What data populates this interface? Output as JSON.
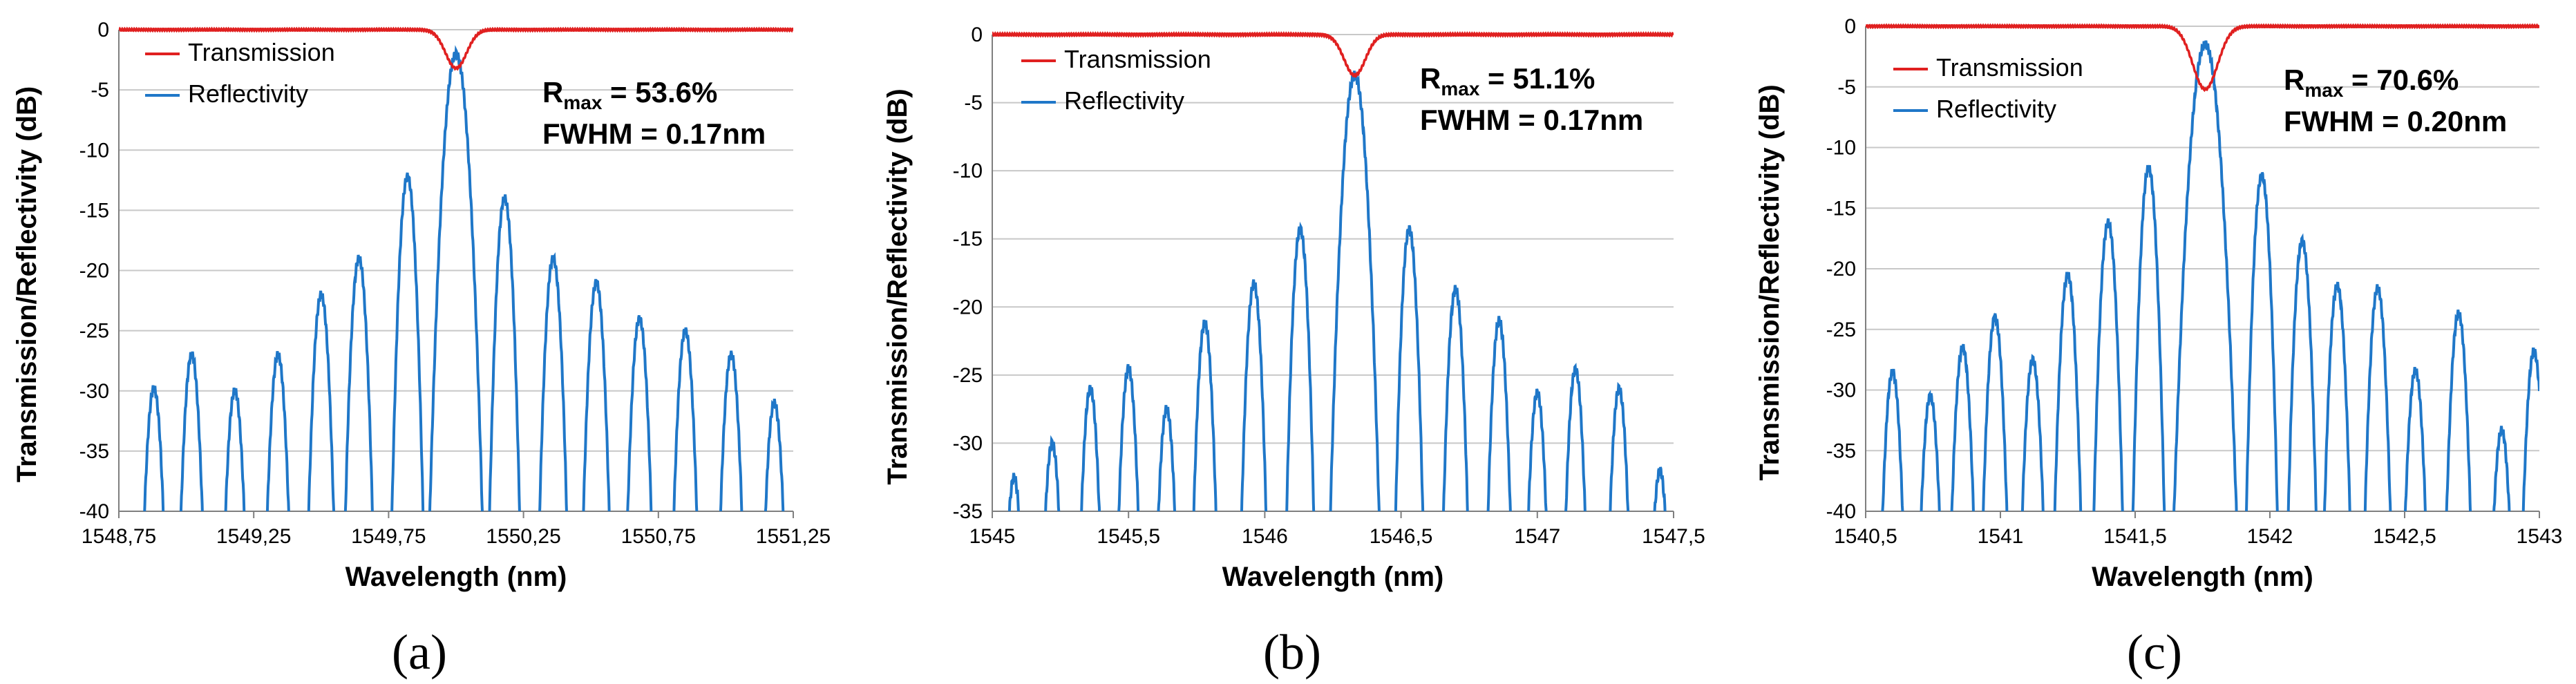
{
  "colors": {
    "transmission": "#e02020",
    "reflectivity": "#1f77c8",
    "grid": "#c8c8c8",
    "axis": "#7f7f7f"
  },
  "chart_data": [
    {
      "type": "line",
      "panel_label": "(a)",
      "xlabel": "Wavelength (nm)",
      "ylabel": "Transmission/Reflectivity (dB)",
      "xlim": [
        1548.75,
        1551.25
      ],
      "ylim": [
        -40,
        0
      ],
      "xticks": [
        1548.75,
        1549.25,
        1549.75,
        1550.25,
        1550.75,
        1551.25
      ],
      "xtick_labels": [
        "1548,75",
        "1549,25",
        "1549,75",
        "1550,25",
        "1550,75",
        "1551,25"
      ],
      "yticks": [
        0,
        -5,
        -10,
        -15,
        -20,
        -25,
        -30,
        -35,
        -40
      ],
      "ytick_labels": [
        "0",
        "-5",
        "-10",
        "-15",
        "-20",
        "-25",
        "-30",
        "-35",
        "-40"
      ],
      "legend": [
        "Transmission",
        "Reflectivity"
      ],
      "annotation": {
        "r_symbol": "R",
        "r_subscript": "max",
        "r_text": " = 53.6%",
        "fwhm_text": "FWHM = 0.17nm"
      },
      "center": 1550.0,
      "transmission_dip": -3.2,
      "transmission_width": 0.055,
      "reflectivity_peak": -2.0,
      "side_lobes": [
        {
          "x": 1548.88,
          "y": -29.8
        },
        {
          "x": 1549.02,
          "y": -27.0
        },
        {
          "x": 1549.18,
          "y": -30.0
        },
        {
          "x": 1549.34,
          "y": -27.0
        },
        {
          "x": 1549.5,
          "y": -22.0
        },
        {
          "x": 1549.64,
          "y": -19.0
        },
        {
          "x": 1549.82,
          "y": -12.2
        },
        {
          "x": 1550.18,
          "y": -14.0
        },
        {
          "x": 1550.36,
          "y": -19.0
        },
        {
          "x": 1550.52,
          "y": -21.0
        },
        {
          "x": 1550.68,
          "y": -24.0
        },
        {
          "x": 1550.85,
          "y": -25.0
        },
        {
          "x": 1551.02,
          "y": -27.0
        },
        {
          "x": 1551.18,
          "y": -31.0
        }
      ]
    },
    {
      "type": "line",
      "panel_label": "(b)",
      "xlabel": "Wavelength (nm)",
      "ylabel": "Transmission/Reflectivity (dB)",
      "xlim": [
        1545,
        1547.5
      ],
      "ylim": [
        -35,
        0
      ],
      "xticks": [
        1545,
        1545.5,
        1546,
        1546.5,
        1547,
        1547.5
      ],
      "xtick_labels": [
        "1545",
        "1545,5",
        "1546",
        "1546,5",
        "1547",
        "1547,5"
      ],
      "yticks": [
        0,
        -5,
        -10,
        -15,
        -20,
        -25,
        -30,
        -35
      ],
      "ytick_labels": [
        "0",
        "-5",
        "-10",
        "-15",
        "-20",
        "-25",
        "-30",
        "-35"
      ],
      "legend": [
        "Transmission",
        "Reflectivity"
      ],
      "annotation": {
        "r_symbol": "R",
        "r_subscript": "max",
        "r_text": " = 51.1%",
        "fwhm_text": "FWHM = 0.17nm"
      },
      "center": 1546.33,
      "transmission_dip": -3.0,
      "transmission_width": 0.055,
      "reflectivity_peak": -3.0,
      "side_lobes": [
        {
          "x": 1545.08,
          "y": -32.5
        },
        {
          "x": 1545.22,
          "y": -30.0
        },
        {
          "x": 1545.36,
          "y": -26.0
        },
        {
          "x": 1545.5,
          "y": -24.5
        },
        {
          "x": 1545.64,
          "y": -27.5
        },
        {
          "x": 1545.78,
          "y": -21.2
        },
        {
          "x": 1545.96,
          "y": -18.3
        },
        {
          "x": 1546.13,
          "y": -14.3
        },
        {
          "x": 1546.53,
          "y": -14.3
        },
        {
          "x": 1546.7,
          "y": -18.7
        },
        {
          "x": 1546.86,
          "y": -21.0
        },
        {
          "x": 1547.0,
          "y": -26.3
        },
        {
          "x": 1547.14,
          "y": -24.6
        },
        {
          "x": 1547.3,
          "y": -26.0
        },
        {
          "x": 1547.45,
          "y": -32.0
        }
      ]
    },
    {
      "type": "line",
      "panel_label": "(c)",
      "xlabel": "Wavelength (nm)",
      "ylabel": "Transmission/Reflectivity (dB)",
      "xlim": [
        1540.5,
        1543
      ],
      "ylim": [
        -40,
        0
      ],
      "xticks": [
        1540.5,
        1541,
        1541.5,
        1542,
        1542.5,
        1543
      ],
      "xtick_labels": [
        "1540,5",
        "1541",
        "1541,5",
        "1542",
        "1542,5",
        "1543"
      ],
      "yticks": [
        0,
        -5,
        -10,
        -15,
        -20,
        -25,
        -30,
        -35,
        -40
      ],
      "ytick_labels": [
        "0",
        "-5",
        "-10",
        "-15",
        "-20",
        "-25",
        "-30",
        "-35",
        "-40"
      ],
      "legend": [
        "Transmission",
        "Reflectivity"
      ],
      "annotation": {
        "r_symbol": "R",
        "r_subscript": "max",
        "r_text": " = 70.6%",
        "fwhm_text": "FWHM = 0.20nm"
      },
      "center": 1541.76,
      "transmission_dip": -5.2,
      "transmission_width": 0.065,
      "reflectivity_peak": -1.5,
      "side_lobes": [
        {
          "x": 1540.6,
          "y": -28.5
        },
        {
          "x": 1540.74,
          "y": -30.5
        },
        {
          "x": 1540.86,
          "y": -26.5
        },
        {
          "x": 1540.98,
          "y": -24.0
        },
        {
          "x": 1541.12,
          "y": -27.5
        },
        {
          "x": 1541.25,
          "y": -20.5
        },
        {
          "x": 1541.4,
          "y": -16.2
        },
        {
          "x": 1541.55,
          "y": -11.7
        },
        {
          "x": 1541.97,
          "y": -12.3
        },
        {
          "x": 1542.12,
          "y": -17.7
        },
        {
          "x": 1542.25,
          "y": -21.4
        },
        {
          "x": 1542.4,
          "y": -21.6
        },
        {
          "x": 1542.54,
          "y": -28.4
        },
        {
          "x": 1542.7,
          "y": -23.7
        },
        {
          "x": 1542.86,
          "y": -33.3
        },
        {
          "x": 1542.98,
          "y": -26.8
        }
      ]
    }
  ]
}
